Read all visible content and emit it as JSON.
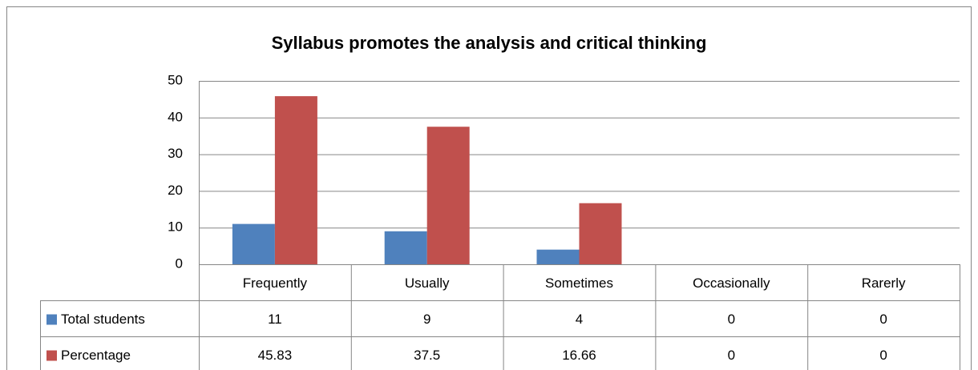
{
  "chart_data": {
    "type": "bar",
    "title": "Syllabus promotes the analysis and critical thinking",
    "categories": [
      "Frequently",
      "Usually",
      "Sometimes",
      "Occasionally",
      "Rarerly"
    ],
    "series": [
      {
        "name": "Total students",
        "color": "#4f81bd",
        "values": [
          11,
          9,
          4,
          0,
          0
        ]
      },
      {
        "name": "Percentage",
        "color": "#c0504d",
        "values": [
          45.83,
          37.5,
          16.66,
          0,
          0
        ]
      }
    ],
    "ylim": [
      0,
      50
    ],
    "yticks": [
      0,
      10,
      20,
      30,
      40,
      50
    ],
    "grid": true,
    "data_table": true
  }
}
